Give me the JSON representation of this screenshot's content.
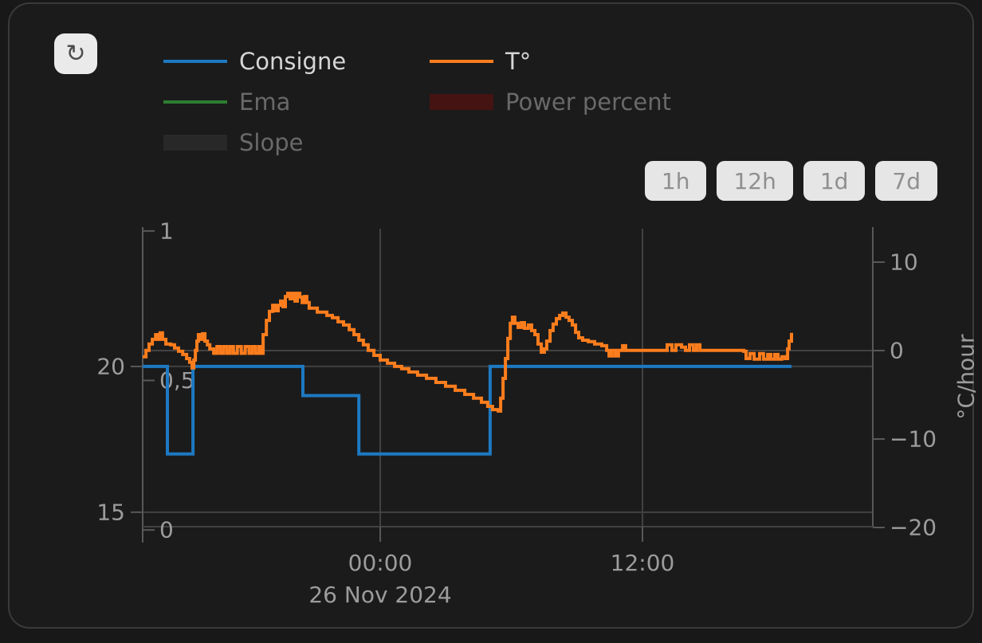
{
  "icons": {
    "refresh": "↻"
  },
  "toolbar": {
    "range_buttons": [
      {
        "label": "1h"
      },
      {
        "label": "12h"
      },
      {
        "label": "1d"
      },
      {
        "label": "7d"
      }
    ]
  },
  "legend": {
    "items": [
      {
        "label": "Consigne",
        "swatch": "line",
        "color": "#1d79c2",
        "active": true
      },
      {
        "label": "T°",
        "swatch": "line",
        "color": "#fc7d1d",
        "active": true
      },
      {
        "label": "Ema",
        "swatch": "line",
        "color": "#2e7d31",
        "active": false
      },
      {
        "label": "Power percent",
        "swatch": "box",
        "color": "#461313",
        "active": false
      },
      {
        "label": "Slope",
        "swatch": "box",
        "color": "#282828",
        "active": false
      }
    ]
  },
  "chart_data": {
    "type": "line",
    "title": "",
    "grid": {
      "h_lines": [
        {
          "axis": "temperature_c",
          "value": 20
        },
        {
          "axis": "temperature_c",
          "value": 15
        },
        {
          "axis": "rate_c_per_hour",
          "value": 0
        }
      ],
      "v_lines_hours": [
        0,
        12
      ]
    },
    "x_axis": {
      "kind": "time",
      "range_hours_from_midnight": [
        -10.87,
        22.54
      ],
      "ticks": [
        {
          "value": 0,
          "label": "00:00"
        },
        {
          "value": 12,
          "label": "12:00"
        }
      ],
      "date_label": "26 Nov 2024"
    },
    "y_axes": {
      "temperature_c": {
        "side": "left",
        "range": [
          14.34,
          24.78
        ],
        "ticks": [
          {
            "value": 20,
            "label": "20"
          },
          {
            "value": 15,
            "label": "15"
          }
        ]
      },
      "power_fraction": {
        "side": "left_inner",
        "range": [
          -0.005,
          1.013
        ],
        "ticks": [
          {
            "value": 1,
            "label": "1"
          },
          {
            "value": 0.5,
            "label": "0,5"
          },
          {
            "value": 0,
            "label": "0"
          }
        ]
      },
      "rate_c_per_hour": {
        "side": "right",
        "label": "°C/hour",
        "range": [
          -20.45,
          13.96
        ],
        "ticks": [
          {
            "value": 10,
            "label": "10"
          },
          {
            "value": 0,
            "label": "0"
          },
          {
            "value": -10,
            "label": "−10"
          },
          {
            "value": -20,
            "label": "−20"
          }
        ]
      }
    },
    "series": [
      {
        "name": "Consigne",
        "axis": "temperature_c",
        "color": "#1d79c2",
        "style": "step",
        "hidden": false,
        "points": [
          [
            -10.87,
            20
          ],
          [
            -9.74,
            17
          ],
          [
            -8.57,
            20
          ],
          [
            -3.54,
            19
          ],
          [
            -0.98,
            17
          ],
          [
            5.03,
            20
          ],
          [
            18.82,
            20
          ]
        ]
      },
      {
        "name": "T°",
        "axis": "temperature_c",
        "color": "#fc7d1d",
        "style": "step",
        "hidden": false,
        "points": [
          [
            -10.87,
            20.33
          ],
          [
            -10.72,
            20.55
          ],
          [
            -10.58,
            20.77
          ],
          [
            -10.43,
            20.93
          ],
          [
            -10.28,
            21.09
          ],
          [
            -10.17,
            20.93
          ],
          [
            -10.07,
            21.15
          ],
          [
            -9.96,
            20.93
          ],
          [
            -9.81,
            20.77
          ],
          [
            -9.59,
            20.74
          ],
          [
            -9.41,
            20.63
          ],
          [
            -9.23,
            20.52
          ],
          [
            -9.04,
            20.41
          ],
          [
            -8.86,
            20.27
          ],
          [
            -8.72,
            20.14
          ],
          [
            -8.61,
            19.95
          ],
          [
            -8.53,
            20.22
          ],
          [
            -8.46,
            20.55
          ],
          [
            -8.39,
            20.87
          ],
          [
            -8.32,
            21.09
          ],
          [
            -8.21,
            20.93
          ],
          [
            -8.13,
            21.12
          ],
          [
            -8.02,
            20.87
          ],
          [
            -7.91,
            20.74
          ],
          [
            -7.8,
            20.6
          ],
          [
            -7.62,
            20.45
          ],
          [
            -7.47,
            20.68
          ],
          [
            -7.32,
            20.45
          ],
          [
            -7.17,
            20.68
          ],
          [
            -7.02,
            20.45
          ],
          [
            -6.87,
            20.68
          ],
          [
            -6.72,
            20.45
          ],
          [
            -6.54,
            20.68
          ],
          [
            -6.36,
            20.45
          ],
          [
            -6.18,
            20.68
          ],
          [
            -6.0,
            20.45
          ],
          [
            -5.85,
            20.68
          ],
          [
            -5.7,
            20.45
          ],
          [
            -5.55,
            20.68
          ],
          [
            -5.47,
            20.45
          ],
          [
            -5.36,
            21.09
          ],
          [
            -5.21,
            21.58
          ],
          [
            -5.07,
            21.89
          ],
          [
            -4.92,
            22.1
          ],
          [
            -4.78,
            21.91
          ],
          [
            -4.67,
            22.1
          ],
          [
            -4.56,
            22.24
          ],
          [
            -4.45,
            22.05
          ],
          [
            -4.34,
            22.4
          ],
          [
            -4.23,
            22.51
          ],
          [
            -4.12,
            22.32
          ],
          [
            -4.01,
            22.51
          ],
          [
            -3.9,
            22.24
          ],
          [
            -3.79,
            22.51
          ],
          [
            -3.68,
            22.38
          ],
          [
            -3.57,
            22.19
          ],
          [
            -3.46,
            22.4
          ],
          [
            -3.36,
            22.19
          ],
          [
            -3.25,
            22.0
          ],
          [
            -3.06,
            22.0
          ],
          [
            -2.88,
            21.86
          ],
          [
            -2.63,
            21.86
          ],
          [
            -2.44,
            21.75
          ],
          [
            -2.19,
            21.67
          ],
          [
            -1.93,
            21.53
          ],
          [
            -1.68,
            21.42
          ],
          [
            -1.42,
            21.26
          ],
          [
            -1.2,
            21.09
          ],
          [
            -0.98,
            20.9
          ],
          [
            -0.77,
            20.74
          ],
          [
            -0.55,
            20.55
          ],
          [
            -0.29,
            20.38
          ],
          [
            0.0,
            20.22
          ],
          [
            0.33,
            20.11
          ],
          [
            0.66,
            20.0
          ],
          [
            0.98,
            19.92
          ],
          [
            1.31,
            19.81
          ],
          [
            1.71,
            19.7
          ],
          [
            2.12,
            19.59
          ],
          [
            2.55,
            19.45
          ],
          [
            2.99,
            19.32
          ],
          [
            3.43,
            19.18
          ],
          [
            3.87,
            19.04
          ],
          [
            4.27,
            18.91
          ],
          [
            4.63,
            18.77
          ],
          [
            4.92,
            18.63
          ],
          [
            5.14,
            18.52
          ],
          [
            5.4,
            18.47
          ],
          [
            5.51,
            18.91
          ],
          [
            5.62,
            19.59
          ],
          [
            5.73,
            20.27
          ],
          [
            5.84,
            20.96
          ],
          [
            5.95,
            21.48
          ],
          [
            6.05,
            21.69
          ],
          [
            6.16,
            21.48
          ],
          [
            6.31,
            21.34
          ],
          [
            6.46,
            21.5
          ],
          [
            6.6,
            21.31
          ],
          [
            6.78,
            21.42
          ],
          [
            6.93,
            21.23
          ],
          [
            7.08,
            21.09
          ],
          [
            7.22,
            20.77
          ],
          [
            7.37,
            20.49
          ],
          [
            7.51,
            20.6
          ],
          [
            7.62,
            20.87
          ],
          [
            7.77,
            21.23
          ],
          [
            7.91,
            21.45
          ],
          [
            8.06,
            21.64
          ],
          [
            8.21,
            21.75
          ],
          [
            8.35,
            21.83
          ],
          [
            8.5,
            21.69
          ],
          [
            8.64,
            21.58
          ],
          [
            8.79,
            21.42
          ],
          [
            8.94,
            21.17
          ],
          [
            9.08,
            20.98
          ],
          [
            9.26,
            20.9
          ],
          [
            9.52,
            20.85
          ],
          [
            9.81,
            20.77
          ],
          [
            10.14,
            20.71
          ],
          [
            10.36,
            20.55
          ],
          [
            10.47,
            20.36
          ],
          [
            10.61,
            20.55
          ],
          [
            10.76,
            20.36
          ],
          [
            10.9,
            20.55
          ],
          [
            11.09,
            20.71
          ],
          [
            11.23,
            20.55
          ],
          [
            11.78,
            20.55
          ],
          [
            12.33,
            20.55
          ],
          [
            12.87,
            20.55
          ],
          [
            13.13,
            20.74
          ],
          [
            13.35,
            20.55
          ],
          [
            13.53,
            20.74
          ],
          [
            13.79,
            20.66
          ],
          [
            13.97,
            20.55
          ],
          [
            14.15,
            20.74
          ],
          [
            14.33,
            20.55
          ],
          [
            14.48,
            20.74
          ],
          [
            14.63,
            20.55
          ],
          [
            15.06,
            20.55
          ],
          [
            15.61,
            20.55
          ],
          [
            16.16,
            20.55
          ],
          [
            16.63,
            20.52
          ],
          [
            16.74,
            20.27
          ],
          [
            16.92,
            20.44
          ],
          [
            17.11,
            20.25
          ],
          [
            17.36,
            20.44
          ],
          [
            17.54,
            20.25
          ],
          [
            17.73,
            20.41
          ],
          [
            17.87,
            20.25
          ],
          [
            18.05,
            20.41
          ],
          [
            18.2,
            20.25
          ],
          [
            18.38,
            20.33
          ],
          [
            18.53,
            20.27
          ],
          [
            18.64,
            20.6
          ],
          [
            18.71,
            20.87
          ],
          [
            18.82,
            21.15
          ]
        ]
      },
      {
        "name": "Ema",
        "axis": "temperature_c",
        "color": "#2e7d31",
        "style": "step",
        "hidden": true,
        "points": []
      },
      {
        "name": "Power percent",
        "axis": "power_fraction",
        "color": "#461313",
        "style": "bar",
        "hidden": true,
        "points": []
      },
      {
        "name": "Slope",
        "axis": "rate_c_per_hour",
        "color": "#282828",
        "style": "bar",
        "hidden": true,
        "points": []
      }
    ]
  }
}
